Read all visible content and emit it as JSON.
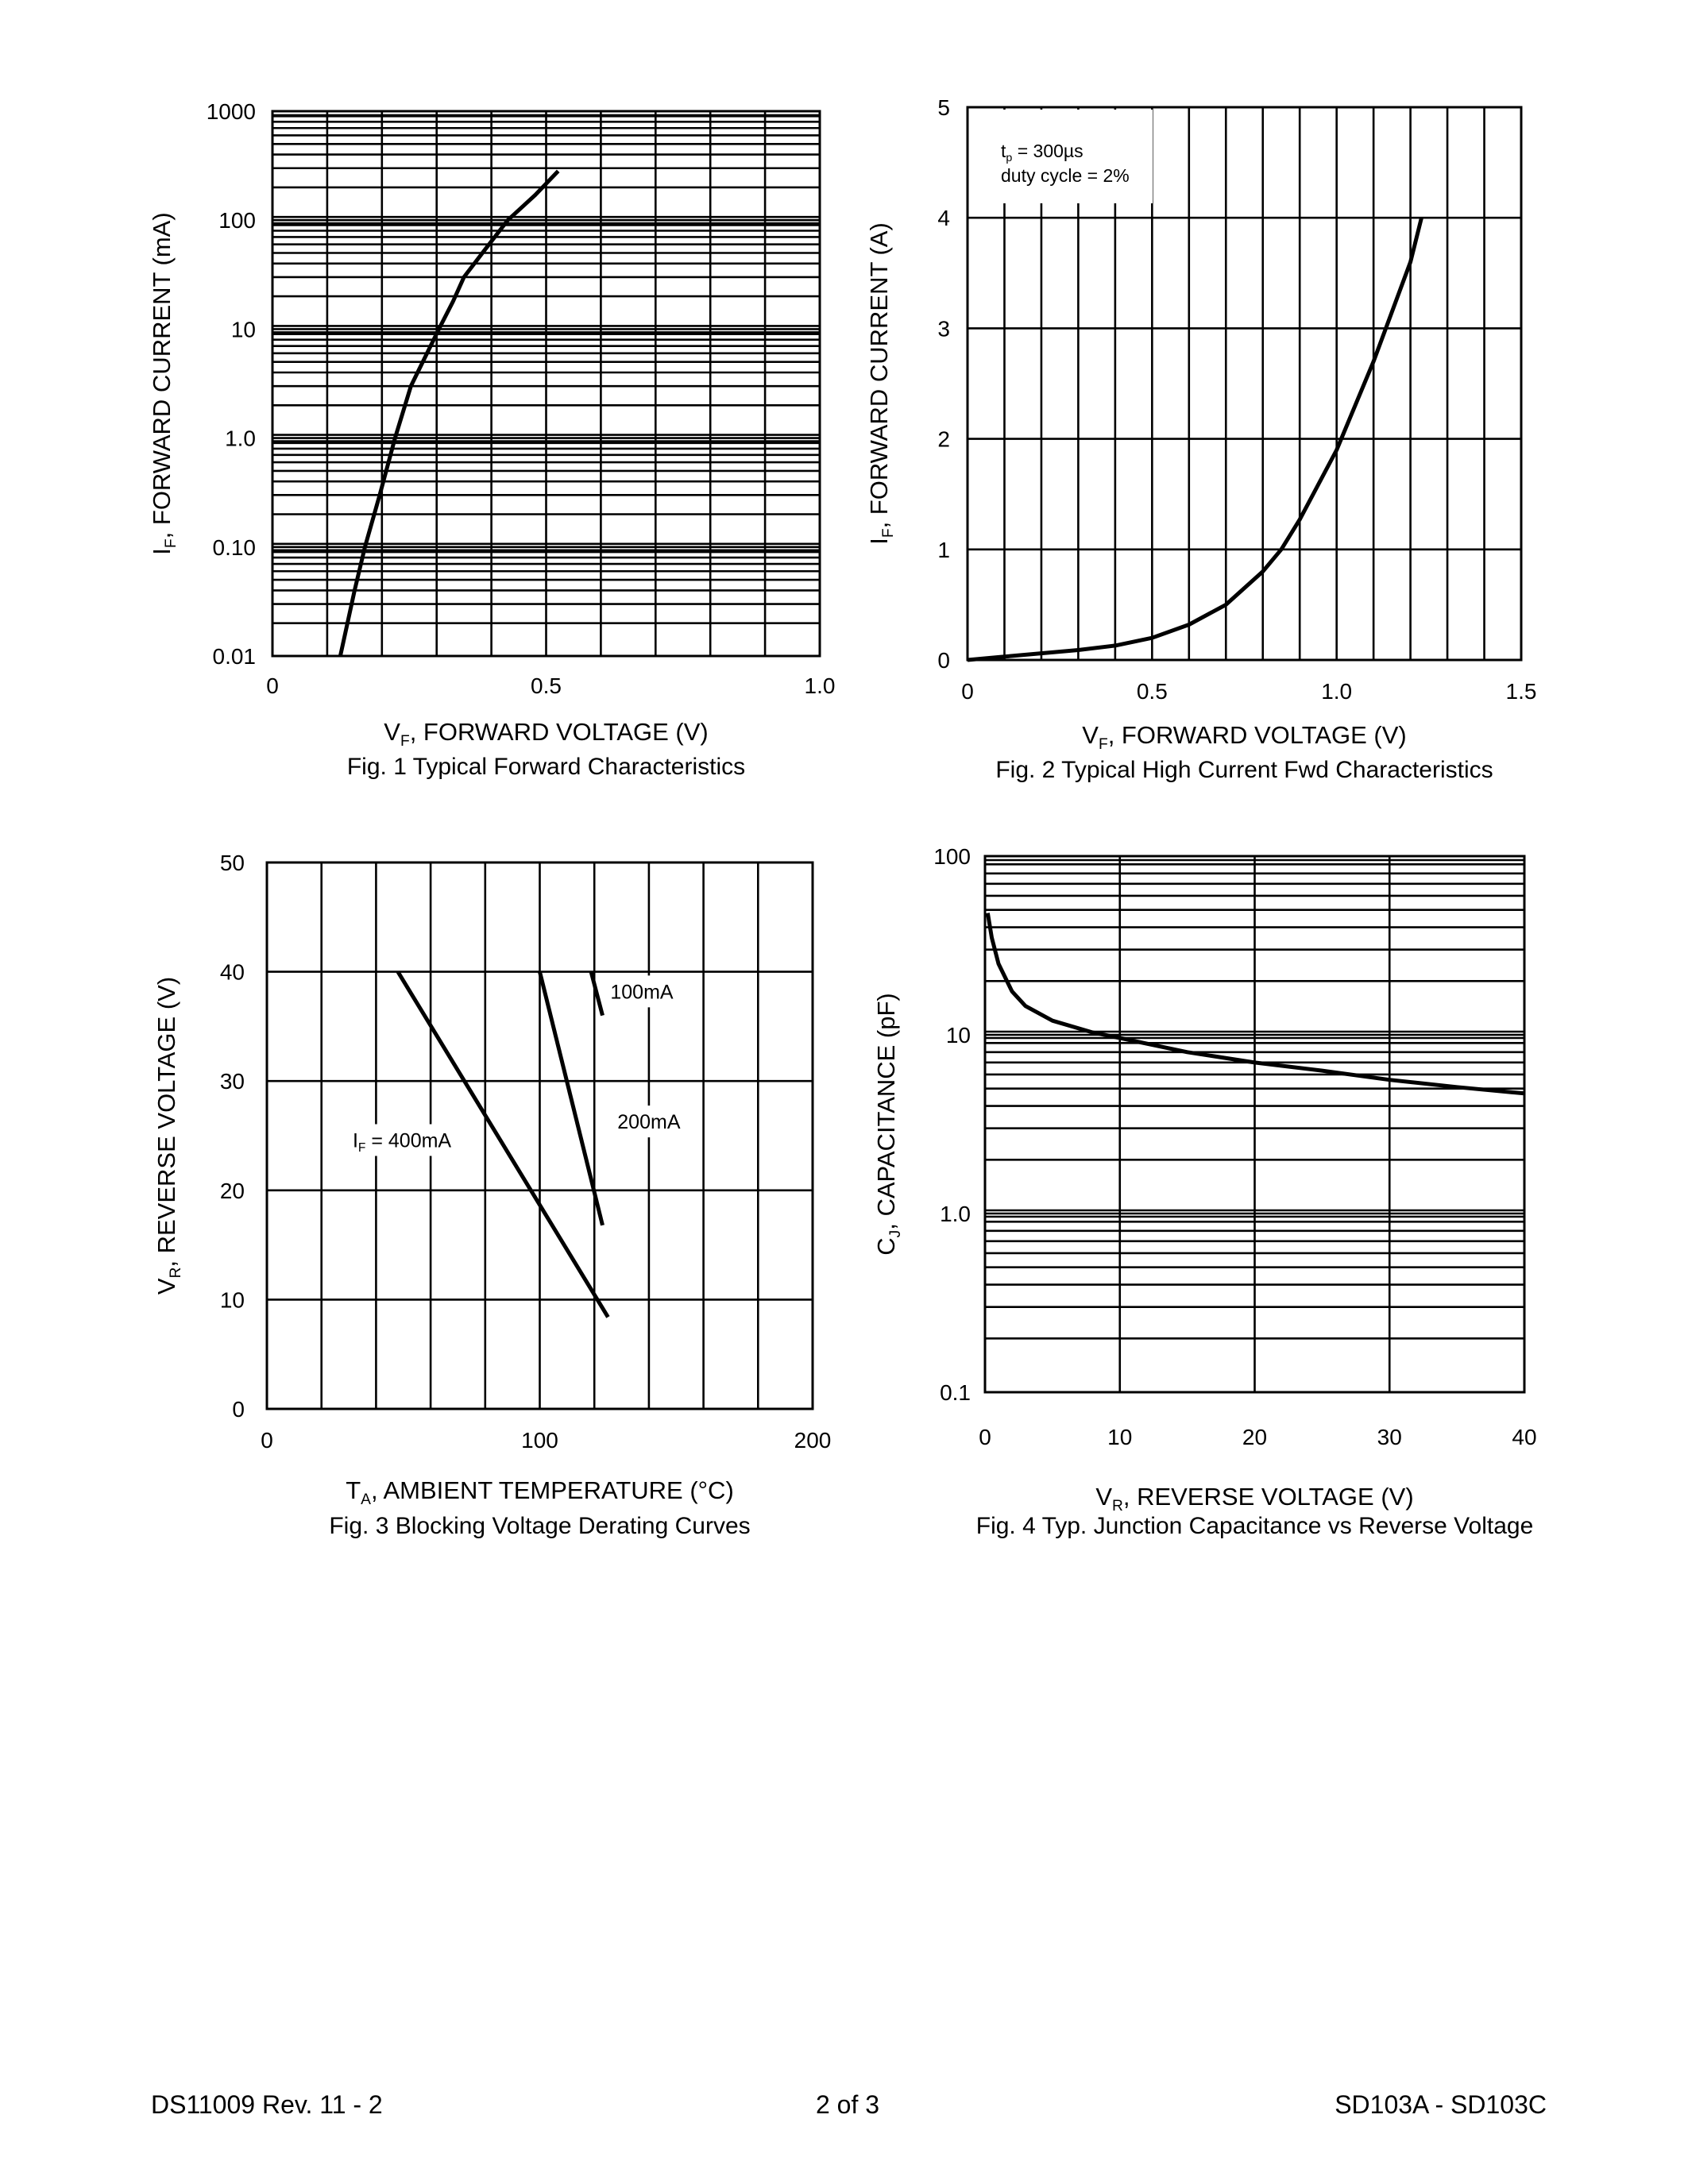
{
  "chart_data": [
    {
      "type": "line",
      "title": "Fig. 1  Typical Forward Characteristics",
      "xlabel": {
        "main": "V",
        "sub": "F",
        "rest": ", FORWARD VOLTAGE (V)"
      },
      "ylabel": {
        "main": "I",
        "sub": "F",
        "rest": ", FORWARD CURRENT (mA)"
      },
      "xlim": [
        0,
        1.0
      ],
      "ylim": [
        0.01,
        1000
      ],
      "yscale": "log",
      "grid": true,
      "xticks": [
        {
          "value": 0,
          "label": "0"
        },
        {
          "value": 0.5,
          "label": "0.5"
        },
        {
          "value": 1.0,
          "label": "1.0"
        }
      ],
      "yticks": [
        {
          "value": 0.01,
          "label": "0.01"
        },
        {
          "value": 0.1,
          "label": "0.10"
        },
        {
          "value": 1,
          "label": "1.0"
        },
        {
          "value": 10,
          "label": "10"
        },
        {
          "value": 100,
          "label": "100"
        },
        {
          "value": 1000,
          "label": "1000"
        }
      ],
      "series": [
        {
          "x": [
            0.124,
            0.15,
            0.169,
            0.196,
            0.224,
            0.253,
            0.304,
            0.33,
            0.35,
            0.39,
            0.43,
            0.48,
            0.522
          ],
          "y": [
            0.01,
            0.04,
            0.1,
            0.3,
            1,
            3,
            10,
            18,
            30,
            55,
            100,
            170,
            282
          ]
        }
      ],
      "annotations": []
    },
    {
      "type": "line",
      "title": "Fig. 2  Typical High Current Fwd Characteristics",
      "xlabel": {
        "main": "V",
        "sub": "F",
        "rest": ", FORWARD VOLTAGE (V)"
      },
      "ylabel": {
        "main": "I",
        "sub": "F",
        "rest": ", FORWARD CURRENT (A)"
      },
      "xlim": [
        0,
        1.5
      ],
      "ylim": [
        0,
        5
      ],
      "yscale": "linear",
      "grid": true,
      "xticks": [
        {
          "value": 0,
          "label": "0"
        },
        {
          "value": 0.5,
          "label": "0.5"
        },
        {
          "value": 1.0,
          "label": "1.0"
        },
        {
          "value": 1.5,
          "label": "1.5"
        }
      ],
      "yticks": [
        {
          "value": 0,
          "label": "0"
        },
        {
          "value": 1,
          "label": "1"
        },
        {
          "value": 2,
          "label": "2"
        },
        {
          "value": 3,
          "label": "3"
        },
        {
          "value": 4,
          "label": "4"
        },
        {
          "value": 5,
          "label": "5"
        }
      ],
      "series": [
        {
          "x": [
            0,
            0.1,
            0.2,
            0.3,
            0.4,
            0.5,
            0.6,
            0.7,
            0.8,
            0.85,
            0.9,
            1.0,
            1.1,
            1.2,
            1.23
          ],
          "y": [
            0,
            0.03,
            0.06,
            0.09,
            0.13,
            0.2,
            0.32,
            0.5,
            0.8,
            1.0,
            1.27,
            1.9,
            2.7,
            3.6,
            4.0
          ]
        }
      ],
      "annotations": [
        {
          "main": "t",
          "sub": "p",
          "rest": " = 300µs"
        },
        {
          "main": "duty cycle = 2%",
          "sub": "",
          "rest": ""
        }
      ]
    },
    {
      "type": "line",
      "title": "Fig. 3  Blocking Voltage Derating Curves",
      "xlabel": {
        "main": "T",
        "sub": "A",
        "rest": ", AMBIENT TEMPERATURE (°C)"
      },
      "ylabel": {
        "main": "V",
        "sub": "R",
        "rest": ", REVERSE VOLTAGE (V)"
      },
      "xlim": [
        0,
        200
      ],
      "ylim": [
        0,
        50
      ],
      "yscale": "linear",
      "grid": true,
      "xticks": [
        {
          "value": 0,
          "label": "0"
        },
        {
          "value": 100,
          "label": "100"
        },
        {
          "value": 200,
          "label": "200"
        }
      ],
      "yticks": [
        {
          "value": 0,
          "label": "0"
        },
        {
          "value": 10,
          "label": "10"
        },
        {
          "value": 20,
          "label": "20"
        },
        {
          "value": 30,
          "label": "30"
        },
        {
          "value": 40,
          "label": "40"
        },
        {
          "value": 50,
          "label": "50"
        }
      ],
      "series": [
        {
          "name": "400mA",
          "x": [
            48,
            125
          ],
          "y": [
            40,
            8.4
          ]
        },
        {
          "name": "200mA",
          "x": [
            100,
            123
          ],
          "y": [
            40,
            16.8
          ]
        },
        {
          "name": "100mA",
          "x": [
            118.8,
            123
          ],
          "y": [
            40,
            36
          ]
        }
      ],
      "annotations": [
        {
          "main": "100mA",
          "sub": "",
          "rest": ""
        },
        {
          "main": "200mA",
          "sub": "",
          "rest": ""
        },
        {
          "main": "I",
          "sub": "F",
          "rest": " = 400mA"
        }
      ]
    },
    {
      "type": "line",
      "title": "Fig. 4 Typ. Junction Capacitance vs Reverse Voltage",
      "xlabel": {
        "main": "V",
        "sub": "R",
        "rest": ", REVERSE VOLTAGE (V)"
      },
      "ylabel": {
        "main": "C",
        "sub": "J",
        "rest": ", CAPACITANCE (pF)"
      },
      "xlim": [
        0,
        40
      ],
      "ylim": [
        0.1,
        100
      ],
      "yscale": "log",
      "grid": true,
      "xticks": [
        {
          "value": 0,
          "label": "0"
        },
        {
          "value": 10,
          "label": "10"
        },
        {
          "value": 20,
          "label": "20"
        },
        {
          "value": 30,
          "label": "30"
        },
        {
          "value": 40,
          "label": "40"
        }
      ],
      "yticks": [
        {
          "value": 0.1,
          "label": "0.1"
        },
        {
          "value": 1,
          "label": "1.0"
        },
        {
          "value": 10,
          "label": "10"
        },
        {
          "value": 100,
          "label": "100"
        }
      ],
      "series": [
        {
          "x": [
            0.2,
            0.5,
            1,
            2,
            3,
            5,
            8,
            10,
            15,
            20,
            25,
            30,
            35,
            40
          ],
          "y": [
            48,
            35,
            25,
            17.5,
            14.5,
            12,
            10.3,
            9.6,
            8,
            7,
            6.3,
            5.6,
            5.1,
            4.7
          ]
        }
      ],
      "annotations": []
    }
  ],
  "footer": {
    "left": "DS11009 Rev. 11 - 2",
    "center": "2 of 3",
    "right": "SD103A - SD103C"
  }
}
